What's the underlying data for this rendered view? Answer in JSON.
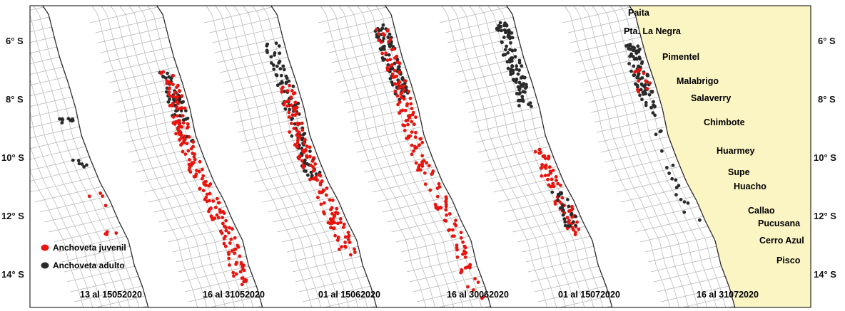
{
  "map": {
    "latitude_labels": [
      "6° S",
      "8° S",
      "10° S",
      "12° S",
      "14° S"
    ],
    "colors": {
      "land": "#fbf5c4",
      "coast": "#2a2a2a",
      "grid": "#b4b4b4",
      "juvenile": "#e8140e",
      "adult": "#2a2a2a"
    },
    "legend": [
      {
        "label": "Anchoveta juvenil",
        "color": "#e8140e"
      },
      {
        "label": "Anchoveta adulto",
        "color": "#2a2a2a"
      }
    ],
    "periods": [
      "13 al 15052020",
      "16 al 31052020",
      "01 al 15062020",
      "16 al 30062020",
      "01 al 15072020",
      "16 al 31072020"
    ],
    "places": [
      "Paita",
      "Pta. La Negra",
      "Pimentel",
      "Malabrigo",
      "Salaverry",
      "Chimbote",
      "Huarmey",
      "Supe",
      "Huacho",
      "Callao",
      "Pucusana",
      "Cerro Azul",
      "Pisco"
    ]
  }
}
